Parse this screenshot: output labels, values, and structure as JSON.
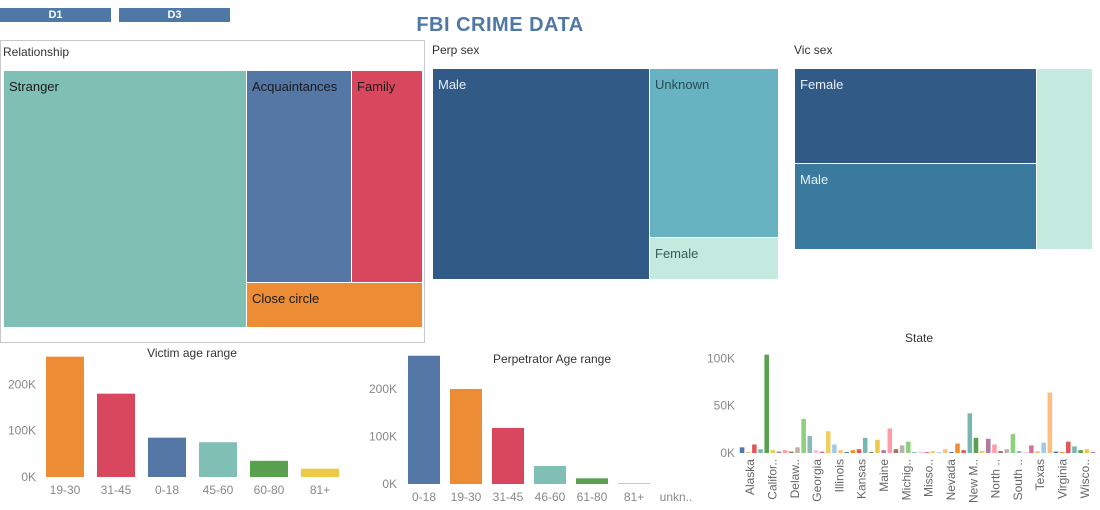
{
  "tabs": [
    "D1",
    "D3"
  ],
  "title": "FBI CRIME DATA",
  "relationship": {
    "title": "Relationship",
    "boxes": [
      {
        "label": "Stranger",
        "color": "#7fbfb4",
        "text_color": "#1a1a1a"
      },
      {
        "label": "Acquaintances",
        "color": "#5477a6",
        "text_color": "#1a1a1a"
      },
      {
        "label": "Family",
        "color": "#d9475f",
        "text_color": "#1a1a1a"
      },
      {
        "label": "Close circle",
        "color": "#ec8c34",
        "text_color": "#1a1a1a"
      }
    ]
  },
  "perp_sex": {
    "title": "Perp sex",
    "boxes": [
      {
        "label": "Male",
        "color": "#325a87",
        "text_color": "#e8eef5"
      },
      {
        "label": "Unknown",
        "color": "#67b3c2",
        "text_color": "#2a4a55"
      },
      {
        "label": "Female",
        "color": "#c4e9de",
        "text_color": "#3a5a5a"
      }
    ]
  },
  "vic_sex": {
    "title": "Vic sex",
    "boxes": [
      {
        "label": "Female",
        "color": "#325a87",
        "text_color": "#e8eef5"
      },
      {
        "label": "Male",
        "color": "#3a7a9e",
        "text_color": "#e8eef5"
      },
      {
        "label": "",
        "color": "#c4e9de",
        "text_color": "#3a5a5a"
      }
    ]
  },
  "chart_data": [
    {
      "type": "bar",
      "title": "Victim age range",
      "categories": [
        "19-30",
        "31-45",
        "0-18",
        "45-60",
        "60-80",
        "81+"
      ],
      "values": [
        260000,
        180000,
        85000,
        75000,
        35000,
        18000
      ],
      "colors": [
        "#ec8c34",
        "#d9475f",
        "#5477a6",
        "#7fbfb4",
        "#59a14f",
        "#edc948"
      ],
      "yticks": [
        "0K",
        "100K",
        "200K"
      ],
      "ylim": [
        0,
        270000
      ]
    },
    {
      "type": "bar",
      "title": "Perpetrator Age range",
      "categories": [
        "0-18",
        "19-30",
        "31-45",
        "46-60",
        "61-80",
        "81+",
        "unkn.."
      ],
      "values": [
        270000,
        200000,
        118000,
        38000,
        12000,
        2000,
        0
      ],
      "colors": [
        "#5477a6",
        "#ec8c34",
        "#d9475f",
        "#7fbfb4",
        "#59a14f",
        "#edc948",
        "#b07aa1"
      ],
      "yticks": [
        "0K",
        "100K",
        "200K"
      ],
      "ylim": [
        0,
        280000
      ]
    },
    {
      "type": "bar",
      "title": "State",
      "categories": [
        "Alaska",
        "Califor..",
        "Delaw..",
        "Georgia",
        "Illinois",
        "Kansas",
        "Maine",
        "Michig..",
        "Misso..",
        "Nevada",
        "New M..",
        "North ..",
        "South ..",
        "Texas",
        "Virginia",
        "Wisco.."
      ],
      "labeled_values": [
        6000,
        104000,
        1500,
        18000,
        23000,
        3000,
        14000,
        26000,
        12000,
        1000,
        17000,
        16000,
        7000,
        64000,
        12000,
        1000
      ],
      "all_values": [
        6000,
        600,
        9000,
        4000,
        104000,
        3000,
        1500,
        3000,
        1500,
        6000,
        36000,
        18000,
        3000,
        1500,
        23000,
        9000,
        3000,
        1000,
        3000,
        4000,
        16000,
        1000,
        14000,
        3000,
        26000,
        4000,
        8000,
        12000,
        1000,
        1000,
        1000,
        2000,
        1000,
        4000,
        1000,
        10000,
        3000,
        42000,
        16000,
        2000,
        15000,
        9000,
        2000,
        4000,
        20000,
        2000,
        1000,
        8000,
        2000,
        11000,
        64000,
        1500,
        1000,
        12000,
        7000,
        3000,
        4000,
        1000
      ],
      "palette": [
        "#4e79a7",
        "#f28e2b",
        "#e15759",
        "#76b7b2",
        "#59a14f",
        "#edc948",
        "#b07aa1",
        "#ff9da7",
        "#9c755f",
        "#bab0ac",
        "#8cd17d",
        "#86bcb6",
        "#fabfd2",
        "#d37295",
        "#f1ce63",
        "#a0cbe8",
        "#ffbe7d"
      ],
      "yticks": [
        "0K",
        "50K",
        "100K"
      ],
      "ylim": [
        0,
        110000
      ]
    }
  ]
}
